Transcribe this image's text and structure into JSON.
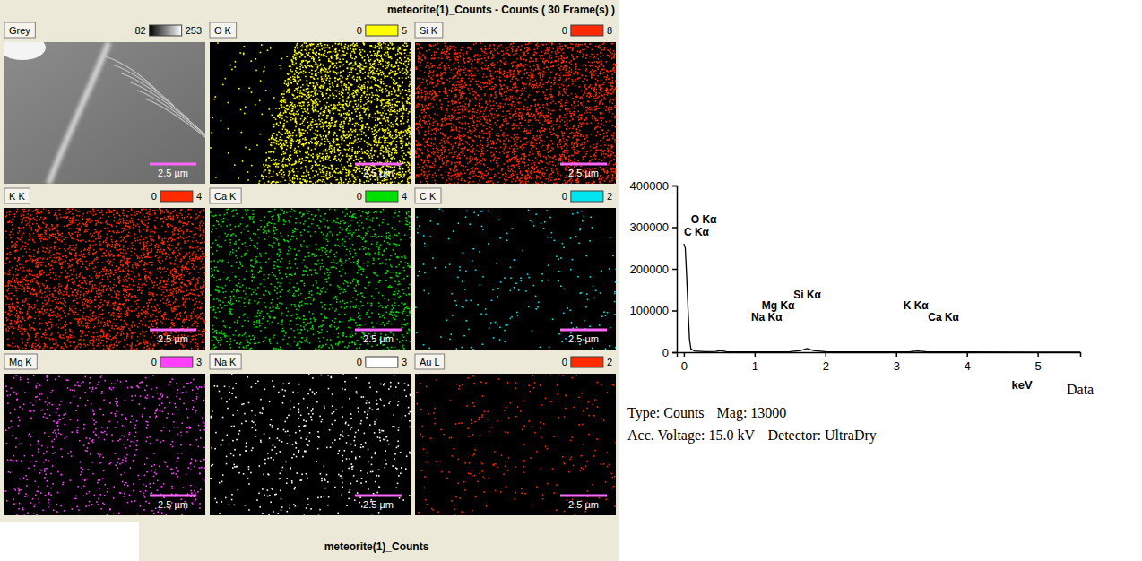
{
  "title": "meteorite(1)_Counts - Counts ( 30 Frame(s) )",
  "footer": "meteorite(1)_Counts",
  "maps": [
    {
      "label": "Grey",
      "min": 82,
      "max": 253,
      "color": "#ffffff",
      "scale_bar": "2.5 µm"
    },
    {
      "label": "O K",
      "min": 0,
      "max": 5,
      "color": "#ffff00",
      "scale_bar": "2.5 µm"
    },
    {
      "label": "Si K",
      "min": 0,
      "max": 8,
      "color": "#ff2a00",
      "scale_bar": "2.5 µm"
    },
    {
      "label": "K K",
      "min": 0,
      "max": 4,
      "color": "#ff2a00",
      "scale_bar": "2.5 µm"
    },
    {
      "label": "Ca K",
      "min": 0,
      "max": 4,
      "color": "#00e000",
      "scale_bar": "2.5 µm"
    },
    {
      "label": "C K",
      "min": 0,
      "max": 2,
      "color": "#00e6f0",
      "scale_bar": "2.5 µm"
    },
    {
      "label": "Mg K",
      "min": 0,
      "max": 3,
      "color": "#ff40ff",
      "scale_bar": "2.5 µm"
    },
    {
      "label": "Na K",
      "min": 0,
      "max": 3,
      "color": "#ffffff",
      "scale_bar": "2.5 µm"
    },
    {
      "label": "Au L",
      "min": 0,
      "max": 2,
      "color": "#ff2a00",
      "scale_bar": "2.5 µm"
    }
  ],
  "chart_data": {
    "type": "line",
    "x_label": "keV",
    "x": [
      0,
      0.02,
      0.04,
      0.06,
      0.08,
      0.1,
      0.15,
      0.3,
      0.45,
      0.52,
      0.6,
      1.0,
      1.25,
      1.5,
      1.65,
      1.74,
      1.83,
      2.0,
      2.5,
      3.0,
      3.2,
      3.31,
      3.42,
      3.6,
      4.0,
      5.0,
      5.6
    ],
    "values": [
      260000,
      250000,
      180000,
      100000,
      30000,
      8000,
      3000,
      1500,
      2000,
      4000,
      1500,
      1000,
      1000,
      1500,
      4000,
      9000,
      4000,
      1200,
      800,
      700,
      1500,
      3000,
      1200,
      600,
      500,
      300,
      200
    ],
    "color": "#000000",
    "xlim": [
      -0.1,
      5.6
    ],
    "xticks": [
      0,
      1,
      2,
      3,
      4,
      5
    ],
    "ylim": [
      0,
      400000
    ],
    "yticks": [
      0,
      100000,
      200000,
      300000,
      400000
    ],
    "annotations": [
      {
        "text": "O Kα",
        "x": 0.1,
        "y": 310000
      },
      {
        "text": "C Kα",
        "x": 0.0,
        "y": 280000
      },
      {
        "text": "Si Kα",
        "x": 1.55,
        "y": 128000
      },
      {
        "text": "Mg Kα",
        "x": 1.1,
        "y": 103000
      },
      {
        "text": "Na Kα",
        "x": 0.95,
        "y": 75000
      },
      {
        "text": "K Kα",
        "x": 3.1,
        "y": 103000
      },
      {
        "text": "Ca Kα",
        "x": 3.45,
        "y": 75000
      }
    ]
  },
  "info": {
    "lead": "Data",
    "lines": [
      [
        "Type: Counts",
        "Mag: 13000"
      ],
      [
        "Acc. Voltage: 15.0 kV",
        "Detector: UltraDry"
      ]
    ]
  }
}
